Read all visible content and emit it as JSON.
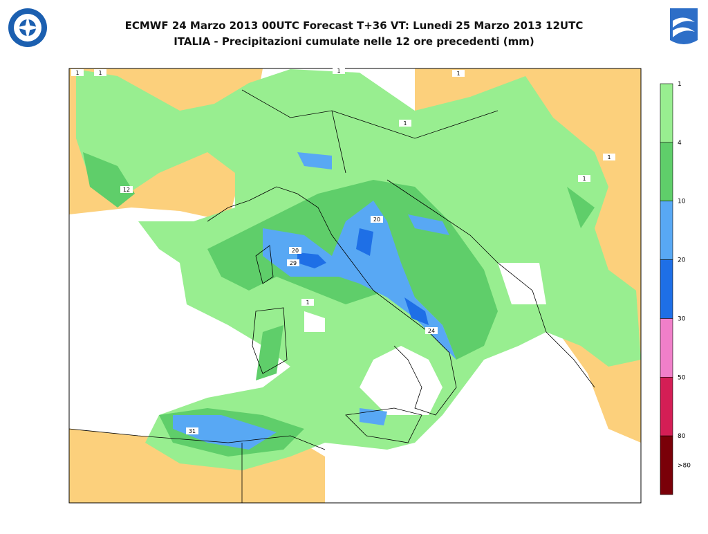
{
  "header": {
    "title_line1": "ECMWF 24 Marzo 2013 00UTC Forecast T+36 VT: Lunedi 25 Marzo 2013 12UTC",
    "title_line2": "ITALIA - Precipitazioni cumulate nelle 12 ore precedenti (mm)"
  },
  "legend": {
    "labels": [
      "1",
      "4",
      "10",
      "20",
      "30",
      "50",
      "80",
      ">80"
    ],
    "colors": [
      "#98ee90",
      "#5fce6a",
      "#58a8f4",
      "#1e6fe6",
      "#f07fc9",
      "#d41e55",
      "#7a0008"
    ]
  },
  "map_labels": [
    "12",
    "20",
    "20",
    "29",
    "24",
    "31",
    "1",
    "1",
    "1",
    "1",
    "1",
    "1",
    "1",
    "1"
  ]
}
